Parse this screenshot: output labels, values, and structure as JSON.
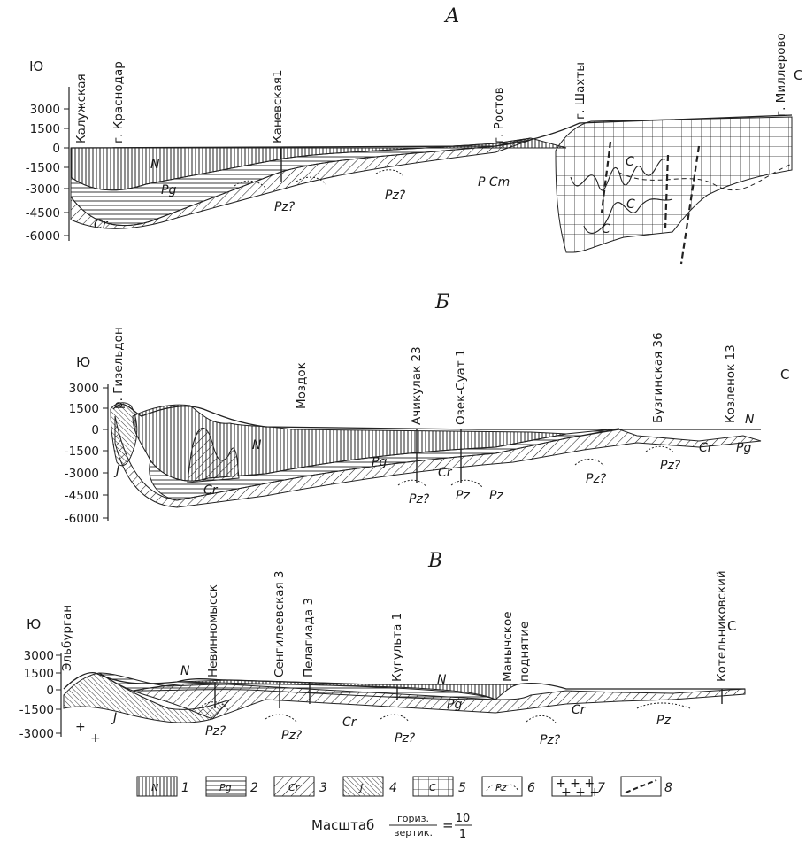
{
  "sections": [
    {
      "id": "A",
      "title": "А",
      "left_side": "Ю",
      "right_side": "С",
      "depth_ticks": [
        "3000",
        "1500",
        "0",
        "-1500",
        "-3000",
        "-4500",
        "-6000"
      ],
      "wells": [
        "Калужская",
        "г. Краснодар",
        "Каневская1",
        "г. Ростов",
        "г. Шахты",
        "г. Миллерово"
      ],
      "formation_labels": [
        "N",
        "Pg",
        "Cr",
        "Pz?",
        "Pz?",
        "P Cm",
        "C",
        "C",
        "C"
      ]
    },
    {
      "id": "B",
      "title": "Б",
      "left_side": "Ю",
      "right_side": "С",
      "depth_ticks": [
        "3000",
        "1500",
        "0",
        "-1500",
        "-3000",
        "-4500",
        "-6000"
      ],
      "wells": [
        "р. Гизельдон",
        "Моздок",
        "Ачикулак 23",
        "Озек-Суат 1",
        "Бузгинская 36",
        "Козленок 13"
      ],
      "formation_labels": [
        "J",
        "Cr",
        "N",
        "Pg",
        "Cr",
        "Pz?",
        "Pz",
        "Pz",
        "Pz?",
        "Pz?",
        "Cr",
        "N",
        "Pg"
      ]
    },
    {
      "id": "V",
      "title": "В",
      "left_side": "Ю",
      "right_side": "С",
      "depth_ticks": [
        "3000",
        "1500",
        "0",
        "-1500",
        "-3000"
      ],
      "wells": [
        "Эльбурган",
        "Невинномысск",
        "Сенгилеевская 3",
        "Пелагиада 3",
        "Кугульта 1",
        "Манычское",
        "поднятие",
        "Котельниковский"
      ],
      "formation_labels": [
        "N",
        "J",
        "Pz?",
        "Pz?",
        "Cr",
        "Pz?",
        "N",
        "Pg",
        "Cr",
        "Pz?",
        "Pz"
      ]
    }
  ],
  "legend": [
    {
      "symbol": "N",
      "num": "1"
    },
    {
      "symbol": "Pg",
      "num": "2"
    },
    {
      "symbol": "Cr",
      "num": "3"
    },
    {
      "symbol": "J",
      "num": "4"
    },
    {
      "symbol": "C",
      "num": "5"
    },
    {
      "symbol": "Pz",
      "num": "6"
    },
    {
      "symbol": "",
      "num": "7"
    },
    {
      "symbol": "",
      "num": "8"
    }
  ],
  "scale": {
    "label": "Масштаб",
    "numerator_word": "гориз.",
    "denominator_word": "вертик.",
    "eq": "=",
    "value_top": "10",
    "value_bottom": "1"
  }
}
